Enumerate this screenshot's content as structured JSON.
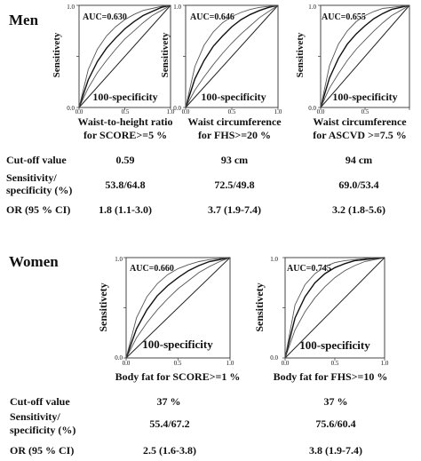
{
  "men": {
    "heading": "Men",
    "charts": [
      {
        "auc": "AUC=0.630",
        "caption1": "Waist-to-height ratio",
        "caption2": "for SCORE>=5 %"
      },
      {
        "auc": "AUC=0.646",
        "caption1": "Waist circumference",
        "caption2": "for FHS>=20 %"
      },
      {
        "auc": "AUC=0.655",
        "caption1": "Waist circumference",
        "caption2": "for ASCVD >=7.5 %"
      }
    ],
    "rows": [
      {
        "label": "Cut-off value",
        "values": [
          "0.59",
          "93 cm",
          "94 cm"
        ]
      },
      {
        "label": "Sensitivity/",
        "label2": "specificity (%)",
        "values": [
          "53.8/64.8",
          "72.5/49.8",
          "69.0/53.4"
        ]
      },
      {
        "label": "OR (95 % CI)",
        "values": [
          "1.8 (1.1-3.0)",
          "3.7 (1.9-7.4)",
          "3.2 (1.8-5.6)"
        ]
      }
    ]
  },
  "women": {
    "heading": "Women",
    "charts": [
      {
        "auc": "AUC=0.660",
        "caption1": "Body fat  for SCORE>=1 %"
      },
      {
        "auc": "AUC=0.745",
        "caption1": "Body fat for FHS>=10 %"
      }
    ],
    "rows": [
      {
        "label": "Cut-off value",
        "values": [
          "37 %",
          "37 %"
        ]
      },
      {
        "label": "Sensitivity/",
        "label2": "specificity (%)",
        "values": [
          "55.4/67.2",
          "75.6/60.4"
        ]
      },
      {
        "label": "OR (95 % CI)",
        "values": [
          "2.5 (1.6-3.8)",
          "3.8 (1.9-7.4)"
        ]
      }
    ]
  },
  "axis": {
    "y_label": "Sensitivety",
    "x_label": "100-specificity",
    "ticks": [
      "0.0",
      "0.5",
      "1.0"
    ]
  },
  "chart_data": [
    {
      "type": "line",
      "title": "Waist-to-height ratio for SCORE>=5 %",
      "auc": 0.63,
      "xlabel": "100-specificity",
      "ylabel": "Sensitivety",
      "xlim": [
        0,
        1
      ],
      "ylim": [
        0,
        1
      ],
      "series": [
        {
          "x": [
            0,
            0.1,
            0.2,
            0.3,
            0.4,
            0.5,
            0.6,
            0.7,
            0.8,
            0.9,
            1
          ],
          "y": [
            0,
            0.19,
            0.34,
            0.46,
            0.57,
            0.67,
            0.75,
            0.83,
            0.9,
            0.95,
            1
          ]
        },
        {
          "x": [
            0,
            0.1,
            0.2,
            0.3,
            0.4,
            0.5,
            0.6,
            0.7,
            0.8,
            0.9,
            1
          ],
          "y": [
            0,
            0.27,
            0.45,
            0.58,
            0.68,
            0.77,
            0.84,
            0.9,
            0.94,
            0.98,
            1
          ]
        },
        {
          "x": [
            0,
            0.1,
            0.2,
            0.3,
            0.4,
            0.5,
            0.6,
            0.7,
            0.8,
            0.9,
            1
          ],
          "y": [
            0,
            0.37,
            0.57,
            0.7,
            0.79,
            0.86,
            0.91,
            0.95,
            0.97,
            0.99,
            1
          ]
        }
      ]
    },
    {
      "type": "line",
      "title": "Waist circumference for FHS>=20 %",
      "auc": 0.646,
      "xlabel": "100-specificity",
      "ylabel": "Sensitivety",
      "xlim": [
        0,
        1
      ],
      "ylim": [
        0,
        1
      ],
      "series": [
        {
          "x": [
            0,
            0.1,
            0.2,
            0.3,
            0.4,
            0.5,
            0.6,
            0.7,
            0.8,
            0.9,
            1
          ],
          "y": [
            0,
            0.17,
            0.3,
            0.42,
            0.53,
            0.63,
            0.72,
            0.8,
            0.88,
            0.94,
            1
          ]
        },
        {
          "x": [
            0,
            0.1,
            0.2,
            0.3,
            0.4,
            0.5,
            0.6,
            0.7,
            0.8,
            0.9,
            1
          ],
          "y": [
            0,
            0.28,
            0.46,
            0.6,
            0.7,
            0.79,
            0.86,
            0.91,
            0.95,
            0.98,
            1
          ]
        },
        {
          "x": [
            0,
            0.1,
            0.2,
            0.3,
            0.4,
            0.5,
            0.6,
            0.7,
            0.8,
            0.9,
            1
          ],
          "y": [
            0,
            0.4,
            0.61,
            0.74,
            0.83,
            0.89,
            0.93,
            0.96,
            0.98,
            0.99,
            1
          ]
        }
      ]
    },
    {
      "type": "line",
      "title": "Waist circumference for ASCVD >=7.5 %",
      "auc": 0.655,
      "xlabel": "100-specificity",
      "ylabel": "Sensitivety",
      "xlim": [
        0,
        1
      ],
      "ylim": [
        0,
        1
      ],
      "series": [
        {
          "x": [
            0,
            0.1,
            0.2,
            0.3,
            0.4,
            0.5,
            0.6,
            0.7,
            0.8,
            0.9,
            1
          ],
          "y": [
            0,
            0.19,
            0.33,
            0.46,
            0.57,
            0.66,
            0.75,
            0.83,
            0.9,
            0.95,
            1
          ]
        },
        {
          "x": [
            0,
            0.1,
            0.2,
            0.3,
            0.4,
            0.5,
            0.6,
            0.7,
            0.8,
            0.9,
            1
          ],
          "y": [
            0,
            0.29,
            0.48,
            0.62,
            0.72,
            0.8,
            0.87,
            0.92,
            0.96,
            0.98,
            1
          ]
        },
        {
          "x": [
            0,
            0.1,
            0.2,
            0.3,
            0.4,
            0.5,
            0.6,
            0.7,
            0.8,
            0.9,
            1
          ],
          "y": [
            0,
            0.41,
            0.62,
            0.75,
            0.84,
            0.9,
            0.94,
            0.97,
            0.98,
            0.99,
            1
          ]
        }
      ]
    },
    {
      "type": "line",
      "title": "Body fat  for SCORE>=1 %",
      "auc": 0.66,
      "xlabel": "100-specificity",
      "ylabel": "Sensitivety",
      "xlim": [
        0,
        1
      ],
      "ylim": [
        0,
        1
      ],
      "series": [
        {
          "x": [
            0,
            0.1,
            0.2,
            0.3,
            0.4,
            0.5,
            0.6,
            0.7,
            0.8,
            0.9,
            1
          ],
          "y": [
            0,
            0.2,
            0.35,
            0.48,
            0.59,
            0.69,
            0.77,
            0.85,
            0.91,
            0.96,
            1
          ]
        },
        {
          "x": [
            0,
            0.1,
            0.2,
            0.3,
            0.4,
            0.5,
            0.6,
            0.7,
            0.8,
            0.9,
            1
          ],
          "y": [
            0,
            0.29,
            0.48,
            0.62,
            0.72,
            0.8,
            0.87,
            0.92,
            0.96,
            0.98,
            1
          ]
        },
        {
          "x": [
            0,
            0.1,
            0.2,
            0.3,
            0.4,
            0.5,
            0.6,
            0.7,
            0.8,
            0.9,
            1
          ],
          "y": [
            0,
            0.4,
            0.61,
            0.74,
            0.83,
            0.89,
            0.93,
            0.96,
            0.98,
            0.99,
            1
          ]
        }
      ]
    },
    {
      "type": "line",
      "title": "Body fat for FHS>=10 %",
      "auc": 0.745,
      "xlabel": "100-specificity",
      "ylabel": "Sensitivety",
      "xlim": [
        0,
        1
      ],
      "ylim": [
        0,
        1
      ],
      "series": [
        {
          "x": [
            0,
            0.1,
            0.2,
            0.3,
            0.4,
            0.5,
            0.6,
            0.7,
            0.8,
            0.9,
            1
          ],
          "y": [
            0,
            0.28,
            0.46,
            0.6,
            0.71,
            0.8,
            0.87,
            0.92,
            0.96,
            0.98,
            1
          ]
        },
        {
          "x": [
            0,
            0.1,
            0.2,
            0.3,
            0.4,
            0.5,
            0.6,
            0.7,
            0.8,
            0.9,
            1
          ],
          "y": [
            0,
            0.4,
            0.61,
            0.75,
            0.84,
            0.9,
            0.94,
            0.97,
            0.98,
            0.99,
            1
          ]
        },
        {
          "x": [
            0,
            0.1,
            0.2,
            0.3,
            0.4,
            0.5,
            0.6,
            0.7,
            0.8,
            0.9,
            1
          ],
          "y": [
            0,
            0.53,
            0.73,
            0.84,
            0.91,
            0.95,
            0.97,
            0.98,
            0.99,
            1,
            1
          ]
        }
      ]
    }
  ]
}
